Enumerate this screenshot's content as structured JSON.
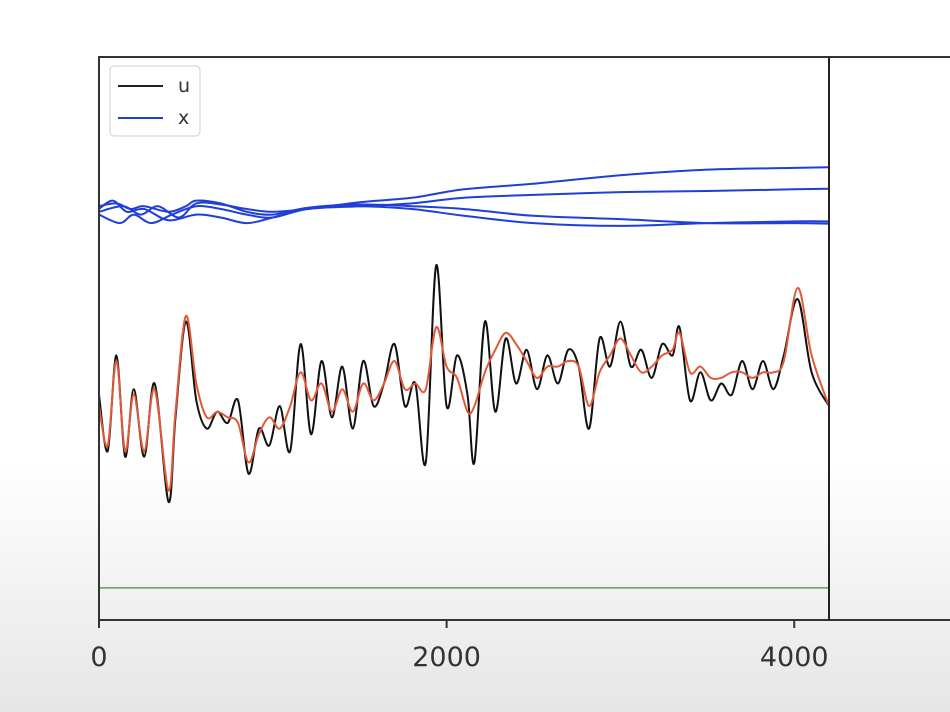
{
  "chart_data": {
    "type": "line",
    "xlim": [
      0,
      4200
    ],
    "ylim": [
      0,
      1
    ],
    "x_ticks": [
      "0",
      "2000",
      "4000"
    ],
    "x_tick_values": [
      0,
      2000,
      4000
    ],
    "grid": false,
    "legend_placement": "top-left",
    "cursor_x": 4200,
    "legend": [
      {
        "label": "u",
        "color": "#222222"
      },
      {
        "label": "x",
        "color": "#1f3fd6"
      }
    ],
    "series": [
      {
        "name": "x",
        "color": "#1f3fd6",
        "points": [
          [
            0,
            0.735
          ],
          [
            100,
            0.74
          ],
          [
            180,
            0.73
          ],
          [
            260,
            0.735
          ],
          [
            400,
            0.725
          ],
          [
            500,
            0.735
          ],
          [
            560,
            0.745
          ],
          [
            700,
            0.74
          ],
          [
            850,
            0.725
          ],
          [
            1000,
            0.72
          ],
          [
            1200,
            0.732
          ],
          [
            1500,
            0.735
          ],
          [
            1800,
            0.73
          ],
          [
            2100,
            0.718
          ],
          [
            2500,
            0.705
          ],
          [
            3000,
            0.7
          ],
          [
            3500,
            0.705
          ],
          [
            4000,
            0.708
          ],
          [
            4200,
            0.708
          ]
        ]
      },
      {
        "name": "x",
        "color": "#1f3fd6",
        "points": [
          [
            0,
            0.72
          ],
          [
            120,
            0.705
          ],
          [
            200,
            0.72
          ],
          [
            300,
            0.705
          ],
          [
            420,
            0.72
          ],
          [
            560,
            0.735
          ],
          [
            700,
            0.73
          ],
          [
            850,
            0.72
          ],
          [
            1000,
            0.715
          ],
          [
            1200,
            0.73
          ],
          [
            1500,
            0.735
          ],
          [
            1800,
            0.74
          ],
          [
            2100,
            0.75
          ],
          [
            2500,
            0.755
          ],
          [
            3000,
            0.76
          ],
          [
            3500,
            0.762
          ],
          [
            4000,
            0.765
          ],
          [
            4200,
            0.766
          ]
        ]
      },
      {
        "name": "x",
        "color": "#1f3fd6",
        "points": [
          [
            0,
            0.73
          ],
          [
            80,
            0.745
          ],
          [
            160,
            0.725
          ],
          [
            260,
            0.73
          ],
          [
            400,
            0.71
          ],
          [
            560,
            0.72
          ],
          [
            700,
            0.715
          ],
          [
            850,
            0.705
          ],
          [
            1000,
            0.715
          ],
          [
            1200,
            0.732
          ],
          [
            1500,
            0.738
          ],
          [
            1800,
            0.735
          ],
          [
            2100,
            0.73
          ],
          [
            2500,
            0.718
          ],
          [
            3000,
            0.712
          ],
          [
            3500,
            0.705
          ],
          [
            4000,
            0.705
          ],
          [
            4200,
            0.704
          ]
        ]
      },
      {
        "name": "x",
        "color": "#1f3fd6",
        "points": [
          [
            0,
            0.725
          ],
          [
            140,
            0.735
          ],
          [
            240,
            0.72
          ],
          [
            340,
            0.735
          ],
          [
            460,
            0.715
          ],
          [
            560,
            0.74
          ],
          [
            700,
            0.738
          ],
          [
            850,
            0.73
          ],
          [
            1000,
            0.725
          ],
          [
            1200,
            0.73
          ],
          [
            1500,
            0.742
          ],
          [
            1800,
            0.75
          ],
          [
            2100,
            0.765
          ],
          [
            2500,
            0.775
          ],
          [
            3000,
            0.79
          ],
          [
            3500,
            0.8
          ],
          [
            4000,
            0.803
          ],
          [
            4200,
            0.804
          ]
        ]
      },
      {
        "name": "u",
        "color": "#111111",
        "points": [
          [
            0,
            0.4
          ],
          [
            50,
            0.3
          ],
          [
            100,
            0.47
          ],
          [
            150,
            0.29
          ],
          [
            200,
            0.41
          ],
          [
            260,
            0.29
          ],
          [
            320,
            0.42
          ],
          [
            400,
            0.21
          ],
          [
            440,
            0.36
          ],
          [
            500,
            0.53
          ],
          [
            560,
            0.39
          ],
          [
            620,
            0.34
          ],
          [
            680,
            0.37
          ],
          [
            740,
            0.35
          ],
          [
            800,
            0.39
          ],
          [
            860,
            0.26
          ],
          [
            920,
            0.34
          ],
          [
            980,
            0.31
          ],
          [
            1040,
            0.38
          ],
          [
            1100,
            0.3
          ],
          [
            1160,
            0.49
          ],
          [
            1220,
            0.33
          ],
          [
            1280,
            0.46
          ],
          [
            1340,
            0.36
          ],
          [
            1400,
            0.45
          ],
          [
            1460,
            0.34
          ],
          [
            1520,
            0.46
          ],
          [
            1580,
            0.38
          ],
          [
            1640,
            0.42
          ],
          [
            1700,
            0.49
          ],
          [
            1760,
            0.38
          ],
          [
            1820,
            0.42
          ],
          [
            1880,
            0.28
          ],
          [
            1940,
            0.63
          ],
          [
            2000,
            0.38
          ],
          [
            2060,
            0.47
          ],
          [
            2120,
            0.4
          ],
          [
            2160,
            0.28
          ],
          [
            2220,
            0.53
          ],
          [
            2280,
            0.37
          ],
          [
            2340,
            0.5
          ],
          [
            2400,
            0.42
          ],
          [
            2460,
            0.48
          ],
          [
            2520,
            0.41
          ],
          [
            2580,
            0.47
          ],
          [
            2640,
            0.42
          ],
          [
            2700,
            0.48
          ],
          [
            2760,
            0.45
          ],
          [
            2820,
            0.34
          ],
          [
            2880,
            0.5
          ],
          [
            2940,
            0.45
          ],
          [
            3000,
            0.53
          ],
          [
            3060,
            0.45
          ],
          [
            3120,
            0.48
          ],
          [
            3180,
            0.43
          ],
          [
            3240,
            0.49
          ],
          [
            3300,
            0.47
          ],
          [
            3340,
            0.52
          ],
          [
            3400,
            0.39
          ],
          [
            3460,
            0.44
          ],
          [
            3520,
            0.39
          ],
          [
            3580,
            0.42
          ],
          [
            3640,
            0.4
          ],
          [
            3700,
            0.46
          ],
          [
            3760,
            0.41
          ],
          [
            3820,
            0.46
          ],
          [
            3880,
            0.41
          ],
          [
            3940,
            0.47
          ],
          [
            4020,
            0.57
          ],
          [
            4100,
            0.44
          ],
          [
            4200,
            0.38
          ]
        ]
      },
      {
        "name": "u",
        "color": "#e05a3a",
        "points": [
          [
            0,
            0.38
          ],
          [
            50,
            0.31
          ],
          [
            100,
            0.46
          ],
          [
            150,
            0.3
          ],
          [
            200,
            0.4
          ],
          [
            260,
            0.3
          ],
          [
            320,
            0.41
          ],
          [
            400,
            0.23
          ],
          [
            440,
            0.37
          ],
          [
            500,
            0.54
          ],
          [
            560,
            0.42
          ],
          [
            620,
            0.36
          ],
          [
            680,
            0.37
          ],
          [
            740,
            0.36
          ],
          [
            800,
            0.35
          ],
          [
            860,
            0.28
          ],
          [
            920,
            0.33
          ],
          [
            980,
            0.36
          ],
          [
            1040,
            0.34
          ],
          [
            1100,
            0.38
          ],
          [
            1160,
            0.44
          ],
          [
            1220,
            0.39
          ],
          [
            1280,
            0.42
          ],
          [
            1340,
            0.37
          ],
          [
            1400,
            0.41
          ],
          [
            1460,
            0.37
          ],
          [
            1520,
            0.42
          ],
          [
            1580,
            0.39
          ],
          [
            1640,
            0.42
          ],
          [
            1700,
            0.46
          ],
          [
            1760,
            0.41
          ],
          [
            1820,
            0.42
          ],
          [
            1880,
            0.41
          ],
          [
            1940,
            0.52
          ],
          [
            2000,
            0.45
          ],
          [
            2060,
            0.43
          ],
          [
            2120,
            0.37
          ],
          [
            2160,
            0.38
          ],
          [
            2220,
            0.44
          ],
          [
            2280,
            0.48
          ],
          [
            2340,
            0.51
          ],
          [
            2400,
            0.49
          ],
          [
            2460,
            0.46
          ],
          [
            2520,
            0.43
          ],
          [
            2580,
            0.45
          ],
          [
            2640,
            0.45
          ],
          [
            2700,
            0.46
          ],
          [
            2760,
            0.45
          ],
          [
            2820,
            0.38
          ],
          [
            2880,
            0.44
          ],
          [
            2940,
            0.47
          ],
          [
            3000,
            0.5
          ],
          [
            3060,
            0.47
          ],
          [
            3120,
            0.44
          ],
          [
            3180,
            0.45
          ],
          [
            3240,
            0.47
          ],
          [
            3300,
            0.48
          ],
          [
            3340,
            0.51
          ],
          [
            3400,
            0.44
          ],
          [
            3460,
            0.45
          ],
          [
            3520,
            0.43
          ],
          [
            3580,
            0.43
          ],
          [
            3640,
            0.44
          ],
          [
            3700,
            0.44
          ],
          [
            3760,
            0.43
          ],
          [
            3820,
            0.44
          ],
          [
            3880,
            0.44
          ],
          [
            3940,
            0.46
          ],
          [
            4020,
            0.59
          ],
          [
            4100,
            0.47
          ],
          [
            4200,
            0.38
          ]
        ]
      },
      {
        "name": "",
        "color": "#6a9a5a",
        "points": [
          [
            0,
            0.057
          ],
          [
            4200,
            0.057
          ]
        ]
      }
    ]
  }
}
